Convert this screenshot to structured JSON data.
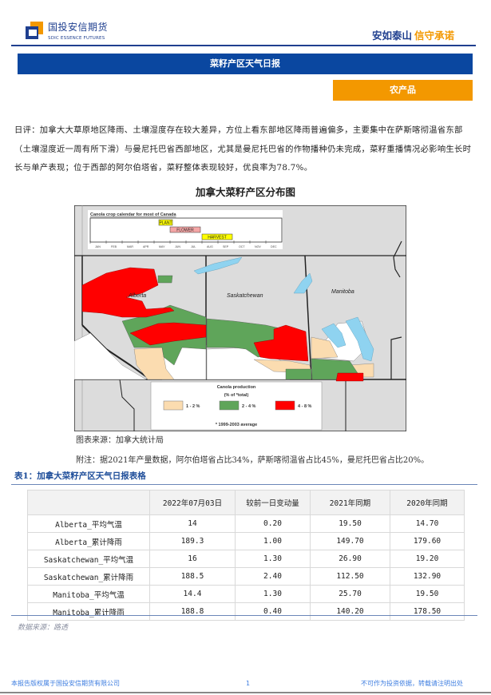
{
  "header": {
    "logo_cn": "国投安信期货",
    "logo_en": "SDIC ESSENCE FUTURES",
    "slogan_a": "安如泰山",
    "slogan_b": "信守承诺",
    "brand_blue": "#1f3f8f",
    "brand_orange": "#f39800"
  },
  "banner": {
    "title": "菜籽产区天气日报"
  },
  "category_tag": "农产品",
  "comment": "日评：加拿大大草原地区降雨、土壤湿度存在较大差异，方位上看东部地区降雨普遍偏多，主要集中在萨斯喀彻温省东部（土壤湿度近一周有所下滑）与曼尼托巴省西部地区，尤其是曼尼托巴省的作物播种仍未完成，菜籽重播情况必影响生长时长与单产表现；位于西部的阿尔伯塔省，菜籽整体表现较好，优良率为78.7%。",
  "map": {
    "title": "加拿大菜籽产区分布图",
    "calendar_title": "Canola crop calendar for most of Canada",
    "months": [
      "JAN",
      "FEB",
      "MAR",
      "APR",
      "MAY",
      "JUN",
      "JUL",
      "AUG",
      "SEP",
      "OCT",
      "NOV",
      "DEC"
    ],
    "stages": [
      {
        "label": "PLANT",
        "start": "MAY",
        "end": "MAY",
        "color": "#ffff00"
      },
      {
        "label": "FLOWER",
        "start": "JUN",
        "end": "JUL",
        "color": "#f4a6a6"
      },
      {
        "label": "HARVEST",
        "start": "AUG",
        "end": "SEP",
        "color": "#ffff00"
      }
    ],
    "provinces": [
      "Alberta",
      "Saskatchewan",
      "Manitoba"
    ],
    "legend_title": "Canola production",
    "legend_subtitle": "(% of *total)",
    "legend": [
      {
        "label": "1 - 2 %",
        "color": "#fbdcb0"
      },
      {
        "label": "2 - 4 %",
        "color": "#5fa55a"
      },
      {
        "label": "4 - 8 %",
        "color": "#ff0000"
      }
    ],
    "legend_note": "* 1999-2003 average",
    "water_color": "#8fd3f0",
    "land_color": "#dcdcdc"
  },
  "figure_source": "图表来源：加拿大统计局",
  "figure_note": "附注：据2021年产量数据，阿尔伯塔省占比34%，萨斯喀彻温省占比45%，曼尼托巴省占比20%。",
  "table": {
    "title": "表1：加拿大菜籽产区天气日报表格",
    "headers": [
      "",
      "2022年07月03日",
      "较前一日变动量",
      "2021年同期",
      "2020年同期"
    ],
    "rows": [
      [
        "Alberta_平均气温",
        "14",
        "0.20",
        "19.50",
        "14.70"
      ],
      [
        "Alberta_累计降雨",
        "189.3",
        "1.00",
        "149.70",
        "179.60"
      ],
      [
        "Saskatchewan_平均气温",
        "16",
        "1.30",
        "26.90",
        "19.20"
      ],
      [
        "Saskatchewan_累计降雨",
        "188.5",
        "2.40",
        "112.50",
        "132.90"
      ],
      [
        "Manitoba_平均气温",
        "14.4",
        "1.30",
        "25.70",
        "19.50"
      ],
      [
        "Manitoba_累计降雨",
        "188.8",
        "0.40",
        "140.20",
        "178.50"
      ]
    ],
    "source": "数据来源：路透"
  },
  "footer": {
    "left": "本报告版权属于国投安信期货有限公司",
    "page": "1",
    "right": "不可作为投资依据，转载请注明出处"
  }
}
